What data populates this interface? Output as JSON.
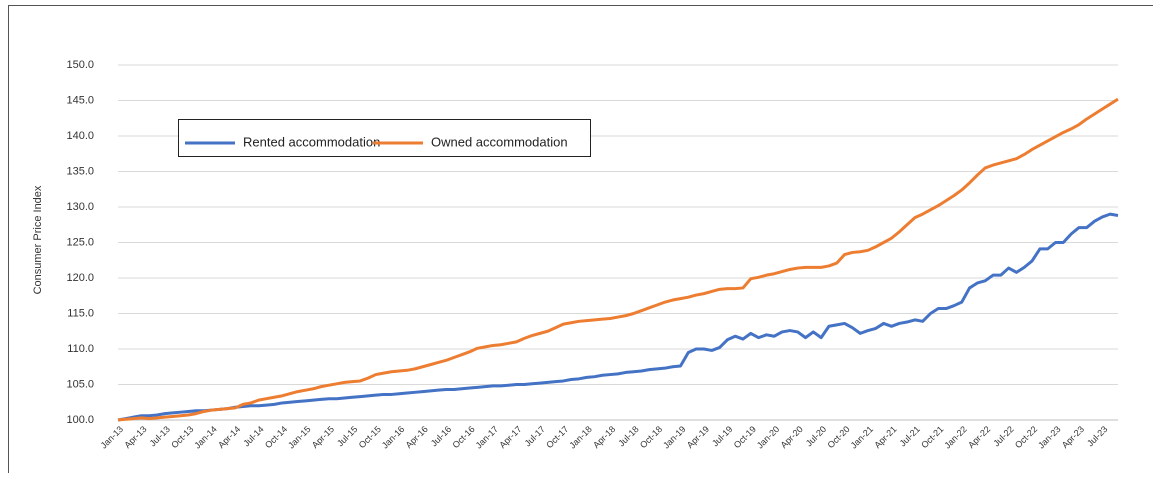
{
  "chart_data": {
    "type": "line",
    "ylabel": "Consumer Price Index",
    "categories": [
      "Jan-13",
      null,
      null,
      "Apr-13",
      null,
      null,
      "Jul-13",
      null,
      null,
      "Oct-13",
      null,
      null,
      "Jan-14",
      null,
      null,
      "Apr-14",
      null,
      null,
      "Jul-14",
      null,
      null,
      "Oct-14",
      null,
      null,
      "Jan-15",
      null,
      null,
      "Apr-15",
      null,
      null,
      "Jul-15",
      null,
      null,
      "Oct-15",
      null,
      null,
      "Jan-16",
      null,
      null,
      "Apr-16",
      null,
      null,
      "Jul-16",
      null,
      null,
      "Oct-16",
      null,
      null,
      "Jan-17",
      null,
      null,
      "Apr-17",
      null,
      null,
      "Jul-17",
      null,
      null,
      "Oct-17",
      null,
      null,
      "Jan-18",
      null,
      null,
      "Apr-18",
      null,
      null,
      "Jul-18",
      null,
      null,
      "Oct-18",
      null,
      null,
      "Jan-19",
      null,
      null,
      "Apr-19",
      null,
      null,
      "Jul-19",
      null,
      null,
      "Oct-19",
      null,
      null,
      "Jan-20",
      null,
      null,
      "Apr-20",
      null,
      null,
      "Jul-20",
      null,
      null,
      "Oct-20",
      null,
      null,
      "Jan-21",
      null,
      null,
      "Apr-21",
      null,
      null,
      "Jul-21",
      null,
      null,
      "Oct-21",
      null,
      null,
      "Jan-22",
      null,
      null,
      "Apr-22",
      null,
      null,
      "Jul-22",
      null,
      null,
      "Oct-22",
      null,
      null,
      "Jan-23",
      null,
      null,
      "Apr-23",
      null,
      null,
      "Jul-23",
      null,
      null
    ],
    "series": [
      {
        "name": "Rented accommodation",
        "color": "#4472c4",
        "values": [
          100.0,
          100.2,
          100.4,
          100.6,
          100.6,
          100.7,
          100.9,
          101.0,
          101.1,
          101.2,
          101.3,
          101.3,
          101.4,
          101.5,
          101.6,
          101.8,
          101.9,
          102.0,
          102.0,
          102.1,
          102.2,
          102.4,
          102.5,
          102.6,
          102.7,
          102.8,
          102.9,
          103.0,
          103.0,
          103.1,
          103.2,
          103.3,
          103.4,
          103.5,
          103.6,
          103.6,
          103.7,
          103.8,
          103.9,
          104.0,
          104.1,
          104.2,
          104.3,
          104.3,
          104.4,
          104.5,
          104.6,
          104.7,
          104.8,
          104.8,
          104.9,
          105.0,
          105.0,
          105.1,
          105.2,
          105.3,
          105.4,
          105.5,
          105.7,
          105.8,
          106.0,
          106.1,
          106.3,
          106.4,
          106.5,
          106.7,
          106.8,
          106.9,
          107.1,
          107.2,
          107.3,
          107.5,
          107.6,
          109.5,
          110.0,
          110.0,
          109.8,
          110.2,
          111.3,
          111.8,
          111.4,
          112.2,
          111.6,
          112.0,
          111.8,
          112.4,
          112.6,
          112.4,
          111.6,
          112.4,
          111.6,
          113.2,
          113.4,
          113.6,
          113.0,
          112.2,
          112.6,
          112.9,
          113.6,
          113.2,
          113.6,
          113.8,
          114.1,
          113.9,
          115.0,
          115.7,
          115.7,
          116.1,
          116.6,
          118.6,
          119.3,
          119.6,
          120.4,
          120.4,
          121.4,
          120.8,
          121.5,
          122.4,
          124.1,
          124.1,
          125.0,
          125.0,
          126.2,
          127.1,
          127.1,
          128.0,
          128.6,
          129.0,
          128.8
        ]
      },
      {
        "name": "Owned accommodation",
        "color": "#ed7d31",
        "values": [
          100.0,
          100.1,
          100.2,
          100.3,
          100.2,
          100.3,
          100.4,
          100.5,
          100.6,
          100.7,
          100.9,
          101.2,
          101.4,
          101.5,
          101.6,
          101.7,
          102.2,
          102.4,
          102.8,
          103.0,
          103.2,
          103.4,
          103.7,
          104.0,
          104.2,
          104.4,
          104.7,
          104.9,
          105.1,
          105.3,
          105.4,
          105.5,
          105.9,
          106.4,
          106.6,
          106.8,
          106.9,
          107.0,
          107.2,
          107.5,
          107.8,
          108.1,
          108.4,
          108.8,
          109.2,
          109.6,
          110.1,
          110.3,
          110.5,
          110.6,
          110.8,
          111.0,
          111.5,
          111.9,
          112.2,
          112.5,
          113.0,
          113.5,
          113.7,
          113.9,
          114.0,
          114.1,
          114.2,
          114.3,
          114.5,
          114.7,
          115.0,
          115.4,
          115.8,
          116.2,
          116.6,
          116.9,
          117.1,
          117.3,
          117.6,
          117.8,
          118.1,
          118.4,
          118.5,
          118.5,
          118.6,
          119.9,
          120.1,
          120.4,
          120.6,
          120.9,
          121.2,
          121.4,
          121.5,
          121.5,
          121.5,
          121.7,
          122.1,
          123.3,
          123.6,
          123.7,
          123.9,
          124.4,
          125.0,
          125.6,
          126.5,
          127.5,
          128.5,
          129.0,
          129.6,
          130.2,
          130.9,
          131.6,
          132.4,
          133.4,
          134.5,
          135.5,
          135.9,
          136.2,
          136.5,
          136.8,
          137.4,
          138.1,
          138.7,
          139.3,
          139.9,
          140.5,
          141.0,
          141.6,
          142.4,
          143.1,
          143.8,
          144.5,
          145.2
        ]
      }
    ],
    "ylim": [
      100,
      150
    ],
    "yticks": [
      {
        "value": 100,
        "label": "100.0"
      },
      {
        "value": 105,
        "label": "105.0"
      },
      {
        "value": 110,
        "label": "110.0"
      },
      {
        "value": 115,
        "label": "115.0"
      },
      {
        "value": 120,
        "label": "120.0"
      },
      {
        "value": 125,
        "label": "125.0"
      },
      {
        "value": 130,
        "label": "130.0"
      },
      {
        "value": 135,
        "label": "135.0"
      },
      {
        "value": 140,
        "label": "140.0"
      },
      {
        "value": 145,
        "label": "145.0"
      },
      {
        "value": 150,
        "label": "150.0"
      }
    ],
    "grid": true,
    "legend": "upper left"
  }
}
